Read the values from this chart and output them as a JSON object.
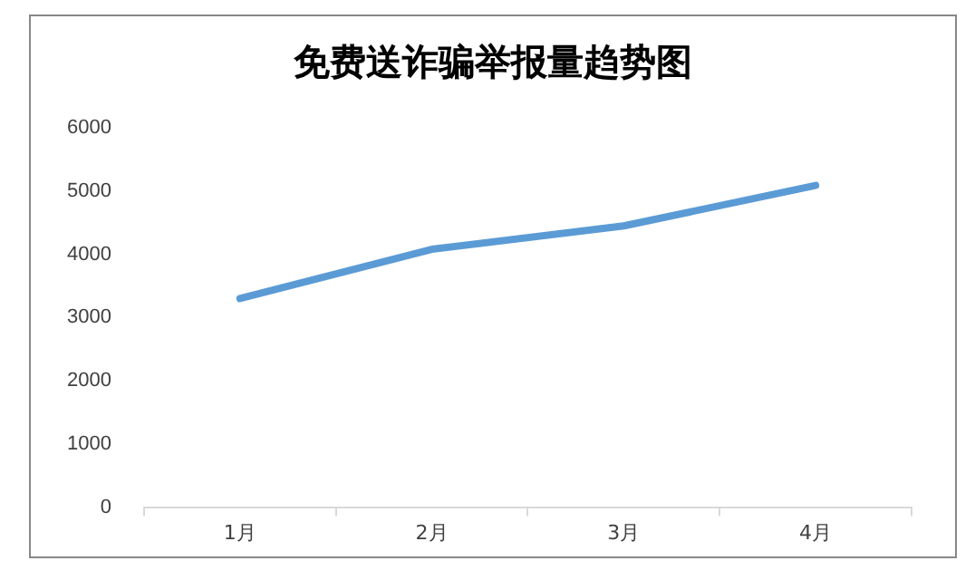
{
  "chart_data": {
    "type": "line",
    "title": "免费送诈骗举报量趋势图",
    "categories": [
      "1月",
      "2月",
      "3月",
      "4月"
    ],
    "series": [
      {
        "color": "#5b9bd5",
        "values": [
          3300,
          4080,
          4450,
          5090
        ]
      }
    ],
    "ylim": [
      0,
      6000
    ],
    "yticks": [
      0,
      1000,
      2000,
      3000,
      4000,
      5000,
      6000
    ],
    "grid": false,
    "legend": false,
    "marker": "none",
    "line_style": "solid"
  }
}
